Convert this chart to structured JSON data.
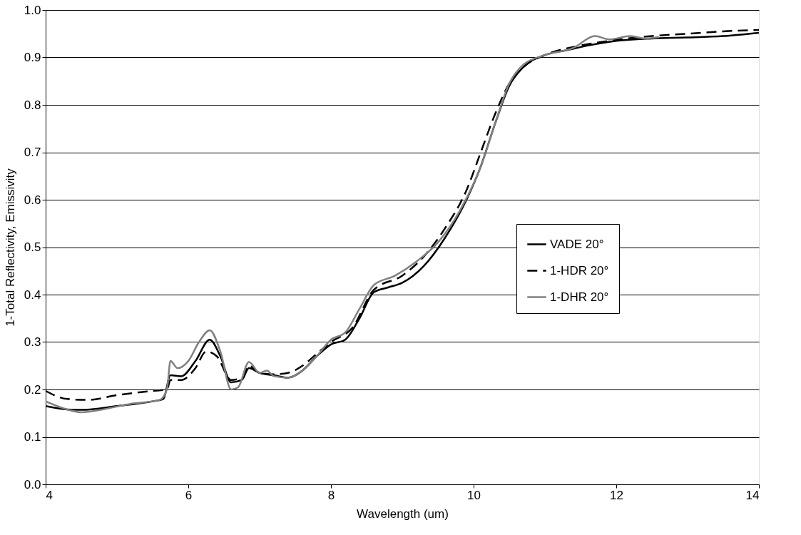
{
  "chart_data": {
    "type": "line",
    "xlabel": "Wavelength (um)",
    "ylabel": "1-Total Reflectivity, Emissivity",
    "xlim": [
      4,
      14
    ],
    "xticks": [
      4,
      6,
      8,
      10,
      12,
      14
    ],
    "ylim": [
      0,
      1
    ],
    "yticks": [
      {
        "value": 0,
        "label": "0.0"
      },
      {
        "value": 0.1,
        "label": "0.1"
      },
      {
        "value": 0.2,
        "label": "0.2"
      },
      {
        "value": 0.3,
        "label": "0.3"
      },
      {
        "value": 0.4,
        "label": "0.4"
      },
      {
        "value": 0.5,
        "label": "0.5"
      },
      {
        "value": 0.6,
        "label": "0.6"
      },
      {
        "value": 0.7,
        "label": "0.7"
      },
      {
        "value": 0.8,
        "label": "0.8"
      },
      {
        "value": 0.9,
        "label": "0.9"
      },
      {
        "value": 1,
        "label": "1.0"
      }
    ],
    "grid": "y",
    "legend": "right",
    "marker": "none",
    "series": [
      {
        "name": "VADE 20°",
        "color": "#000000",
        "line_style": "solid",
        "x": [
          4.0,
          4.3,
          4.5,
          5.0,
          5.5,
          5.65,
          5.75,
          5.9,
          6.1,
          6.3,
          6.45,
          6.6,
          6.75,
          6.85,
          7.0,
          7.2,
          7.4,
          7.6,
          7.8,
          8.0,
          8.2,
          8.4,
          8.6,
          8.8,
          9.0,
          9.3,
          9.6,
          9.9,
          10.1,
          10.3,
          10.5,
          10.7,
          11.0,
          11.3,
          11.6,
          12.0,
          12.5,
          13.0,
          13.5,
          14.0
        ],
        "values": [
          0.165,
          0.158,
          0.157,
          0.165,
          0.175,
          0.18,
          0.23,
          0.228,
          0.26,
          0.305,
          0.27,
          0.215,
          0.22,
          0.245,
          0.235,
          0.23,
          0.225,
          0.24,
          0.27,
          0.295,
          0.305,
          0.35,
          0.405,
          0.415,
          0.425,
          0.46,
          0.52,
          0.6,
          0.67,
          0.76,
          0.84,
          0.88,
          0.905,
          0.915,
          0.925,
          0.935,
          0.94,
          0.942,
          0.945,
          0.952
        ]
      },
      {
        "name": "1-HDR 20°",
        "color": "#000000",
        "line_style": "dashed",
        "x": [
          4.0,
          4.3,
          4.6,
          5.0,
          5.5,
          5.7,
          5.75,
          5.9,
          6.1,
          6.25,
          6.4,
          6.6,
          6.75,
          6.85,
          7.0,
          7.2,
          7.4,
          7.6,
          7.8,
          8.0,
          8.3,
          8.6,
          9.0,
          9.3,
          9.6,
          9.9,
          10.1,
          10.3,
          10.5,
          10.7,
          11.0,
          11.5,
          12.0,
          12.5,
          13.0,
          13.5,
          14.0
        ],
        "values": [
          0.197,
          0.18,
          0.178,
          0.188,
          0.197,
          0.2,
          0.22,
          0.22,
          0.245,
          0.28,
          0.27,
          0.22,
          0.225,
          0.25,
          0.235,
          0.232,
          0.235,
          0.25,
          0.275,
          0.3,
          0.33,
          0.41,
          0.44,
          0.48,
          0.54,
          0.62,
          0.7,
          0.78,
          0.845,
          0.88,
          0.905,
          0.925,
          0.937,
          0.945,
          0.95,
          0.955,
          0.958
        ]
      },
      {
        "name": "1-DHR 20°",
        "color": "#808080",
        "line_style": "solid",
        "x": [
          4.0,
          4.3,
          4.5,
          4.8,
          5.2,
          5.6,
          5.7,
          5.75,
          5.85,
          6.0,
          6.15,
          6.3,
          6.45,
          6.6,
          6.7,
          6.85,
          7.0,
          7.1,
          7.2,
          7.4,
          7.6,
          7.8,
          8.0,
          8.2,
          8.4,
          8.6,
          8.9,
          9.2,
          9.5,
          9.8,
          10.1,
          10.3,
          10.5,
          10.7,
          11.0,
          11.4,
          11.7,
          11.9,
          12.2,
          12.4,
          12.6
        ],
        "values": [
          0.175,
          0.158,
          0.152,
          0.158,
          0.17,
          0.178,
          0.2,
          0.26,
          0.245,
          0.26,
          0.3,
          0.325,
          0.28,
          0.2,
          0.205,
          0.258,
          0.235,
          0.24,
          0.228,
          0.225,
          0.24,
          0.27,
          0.305,
          0.32,
          0.37,
          0.42,
          0.44,
          0.47,
          0.51,
          0.575,
          0.67,
          0.76,
          0.845,
          0.885,
          0.905,
          0.92,
          0.945,
          0.938,
          0.945,
          0.94,
          0.943
        ]
      }
    ]
  }
}
